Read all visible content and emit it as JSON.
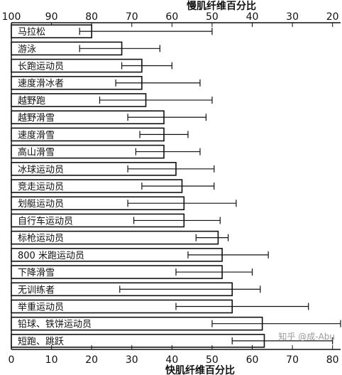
{
  "chart_data": {
    "type": "bar",
    "orientation": "horizontal",
    "top_axis_label": "慢肌纤维百分比",
    "bottom_axis_label": "快肌纤维百分比",
    "top_axis_ticks": [
      "100",
      "90",
      "80",
      "70",
      "60",
      "50",
      "40",
      "30",
      "20"
    ],
    "bottom_axis_ticks": [
      "0",
      "10",
      "20",
      "30",
      "40",
      "50",
      "60",
      "70",
      "80"
    ],
    "xlim": [
      0,
      82
    ],
    "grid": false,
    "categories": [
      "马拉松",
      "游泳",
      "长跑运动员",
      "速度滑冰者",
      "越野跑",
      "越野滑雪",
      "速度滑雪",
      "高山滑雪",
      "冰球运动员",
      "竞走运动员",
      "划艇运动员",
      "自行车运动员",
      "标枪运动员",
      "800 米跑运动员",
      "下降滑雪",
      "无训练者",
      "举重运动员",
      "铅球、铁饼运动员",
      "短跑、跳跃"
    ],
    "values": [
      20,
      27.5,
      32.5,
      32.5,
      33.5,
      38,
      38,
      38,
      41,
      42.5,
      43,
      43,
      51.5,
      52.5,
      52.5,
      55,
      55,
      62.5,
      63
    ],
    "error_low": [
      17,
      17,
      27.5,
      26,
      22,
      29,
      32,
      31,
      29,
      32.5,
      29,
      30.5,
      46,
      44,
      41,
      27,
      41,
      50,
      55
    ],
    "error_high": [
      50,
      37,
      40,
      47,
      50,
      48.5,
      44,
      47,
      50.5,
      50.5,
      56,
      52,
      54,
      64,
      60,
      62,
      74,
      82,
      80
    ]
  },
  "watermark": "知乎 @成-Abu"
}
